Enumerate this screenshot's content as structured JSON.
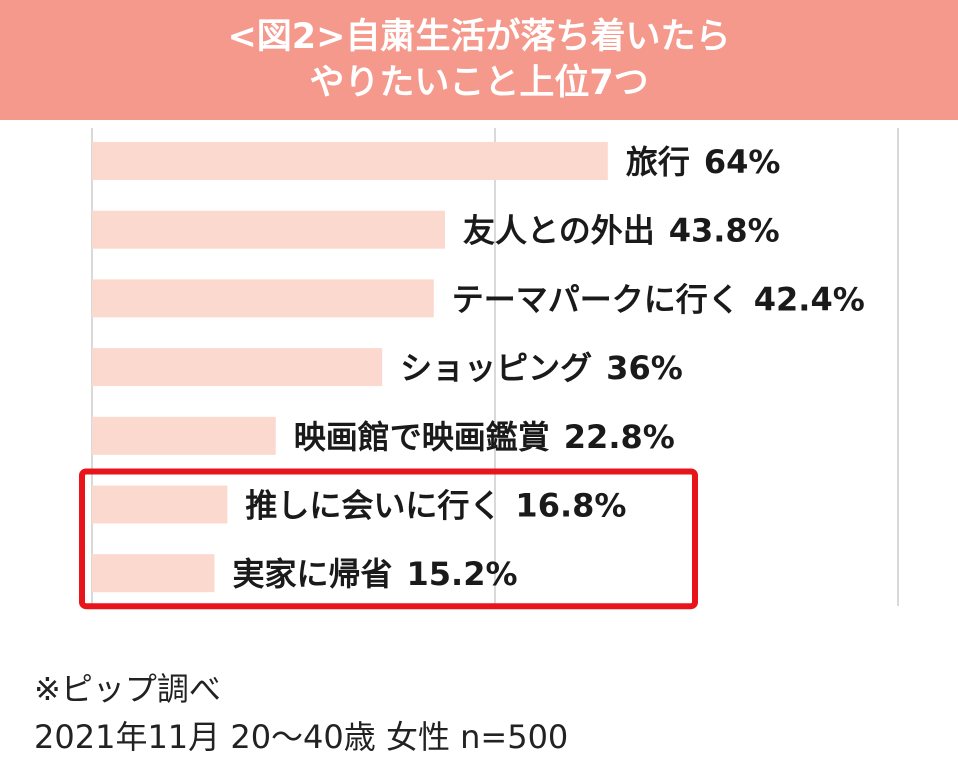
{
  "title": {
    "line1": "<図2>自粛生活が落ち着いたら",
    "line2": "やりたいこと上位7つ"
  },
  "colors": {
    "title_band": "#f4998c",
    "bar": "#fcd9cf",
    "highlight_border": "#e8141b",
    "grid": "#d9d9d9"
  },
  "chart_data": {
    "type": "bar",
    "orientation": "horizontal",
    "categories": [
      "旅行",
      "友人との外出",
      "テーマパークに行く",
      "ショッピング",
      "映画館で映画鑑賞",
      "推しに会いに行く",
      "実家に帰省"
    ],
    "values": [
      64,
      43.8,
      42.4,
      36,
      22.8,
      16.8,
      15.2
    ],
    "value_labels": [
      "64%",
      "43.8%",
      "42.4%",
      "36%",
      "22.8%",
      "16.8%",
      "15.2%"
    ],
    "highlighted": [
      "推しに会いに行く",
      "実家に帰省"
    ],
    "xlim": [
      0,
      100
    ],
    "grid": true
  },
  "footer": {
    "source": "※ピップ調べ",
    "meta": "2021年11月 20〜40歳 女性 n=500"
  }
}
